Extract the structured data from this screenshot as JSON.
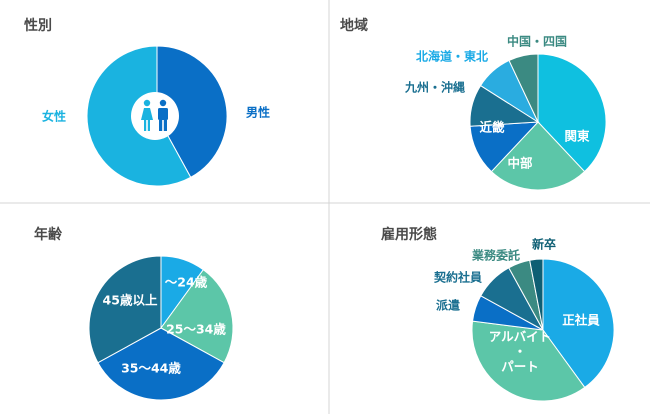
{
  "colors": {
    "title": "#4a4a4a",
    "divider": "#d4d4d4",
    "gender_male": "#0a6fc6",
    "gender_female": "#1ab3e0",
    "region": [
      "#0fc0e0",
      "#5cc6a8",
      "#0a6fc6",
      "#1a6f90",
      "#2aace0",
      "#3b8a82"
    ],
    "age": [
      "#1aaae6",
      "#5cc6a8",
      "#0a6fc6",
      "#1a6f90"
    ],
    "employment": [
      "#1aaae6",
      "#5cc6a8",
      "#0a6fc6",
      "#1a6f90",
      "#3b8a82",
      "#0e5f74"
    ],
    "outer_label": "#1a6f90"
  },
  "chart_data": [
    {
      "id": "gender",
      "type": "pie",
      "title": "性別",
      "categories": [
        "男性",
        "女性"
      ],
      "values": [
        42,
        58
      ],
      "label_mode": "outside",
      "icon": "people-icon"
    },
    {
      "id": "region",
      "type": "pie",
      "title": "地域",
      "categories": [
        "関東",
        "中部",
        "近畿",
        "九州・沖縄",
        "北海道・東北",
        "中国・四国"
      ],
      "values": [
        38,
        24,
        12,
        10,
        9,
        7
      ],
      "label_mode": "mixed"
    },
    {
      "id": "age",
      "type": "pie",
      "title": "年齢",
      "categories": [
        "～24歳",
        "25～34歳",
        "35～44歳",
        "45歳以上"
      ],
      "values": [
        10,
        23,
        34,
        33
      ],
      "label_mode": "inside"
    },
    {
      "id": "employment",
      "type": "pie",
      "title": "雇用形態",
      "categories": [
        "正社員",
        "アルバイト・パート",
        "派遣",
        "契約社員",
        "業務委託",
        "新卒"
      ],
      "values": [
        40,
        37,
        6,
        9,
        5,
        3
      ],
      "label_mode": "mixed"
    }
  ]
}
